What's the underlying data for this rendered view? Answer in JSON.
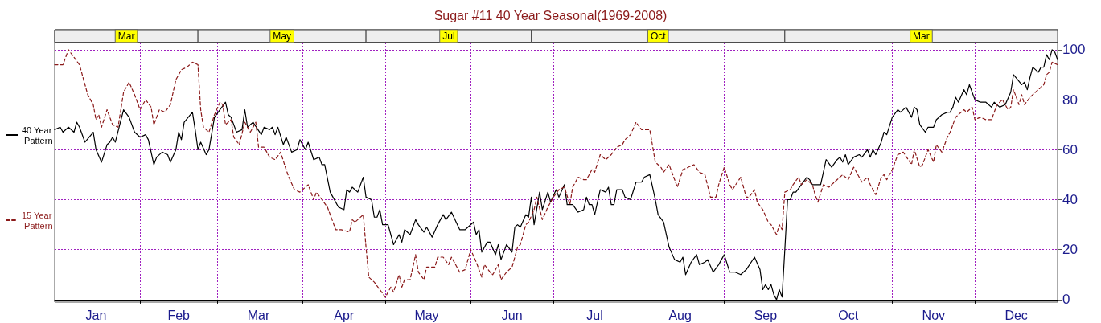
{
  "chart_data": {
    "type": "line",
    "title": "Sugar #11 40 Year Seasonal(1969-2008)",
    "series": [
      {
        "name": "40 Year Pattern",
        "color": "#000000",
        "line_style": "solid",
        "x": [
          "--01-01",
          "--01-03",
          "--01-04",
          "--01-06",
          "--01-08",
          "--01-09",
          "--01-10",
          "--01-12",
          "--01-15",
          "--01-16",
          "--01-18",
          "--01-20",
          "--01-21",
          "--01-22",
          "--01-23",
          "--01-26",
          "--01-28",
          "--01-30",
          "--02-01",
          "--02-03",
          "--02-04",
          "--02-06",
          "--02-07",
          "--02-09",
          "--02-11",
          "--02-12",
          "--02-14",
          "--02-15",
          "--02-16",
          "--02-17",
          "--02-20",
          "--02-21",
          "--02-22",
          "--02-23",
          "--02-25",
          "--02-26",
          "--02-28",
          "--03-04",
          "--03-05",
          "--03-06",
          "--03-08",
          "--03-10",
          "--03-11",
          "--03-12",
          "--03-14",
          "--03-17",
          "--03-18",
          "--03-20",
          "--03-21",
          "--03-22",
          "--03-23",
          "--03-25",
          "--03-26",
          "--03-28",
          "--03-30",
          "--03-31",
          "--04-02",
          "--04-03",
          "--04-05",
          "--04-07",
          "--04-08",
          "--04-09",
          "--04-11",
          "--04-14",
          "--04-16",
          "--04-17",
          "--04-18",
          "--04-19",
          "--04-21",
          "--04-23",
          "--04-24",
          "--04-26",
          "--04-27",
          "--04-28",
          "--04-29",
          "--04-30",
          "--05-02",
          "--05-04",
          "--05-06",
          "--05-07",
          "--05-08",
          "--05-10",
          "--05-12",
          "--05-13",
          "--05-15",
          "--05-16",
          "--05-18",
          "--05-20",
          "--05-22",
          "--05-23",
          "--05-25",
          "--05-28",
          "--05-30",
          "--06-02",
          "--06-03",
          "--06-04",
          "--06-05",
          "--06-07",
          "--06-08",
          "--06-10",
          "--06-11",
          "--06-12",
          "--06-14",
          "--06-16",
          "--06-17",
          "--06-18",
          "--06-19",
          "--06-21",
          "--06-22",
          "--06-23",
          "--06-24",
          "--06-26",
          "--06-27",
          "--06-29",
          "--06-30",
          "--07-02",
          "--07-03",
          "--07-05",
          "--07-06",
          "--07-08",
          "--07-10",
          "--07-12",
          "--07-13",
          "--07-14",
          "--07-15",
          "--07-16",
          "--07-18",
          "--07-20",
          "--07-21",
          "--07-22",
          "--07-23",
          "--07-24",
          "--07-26",
          "--07-27",
          "--07-29",
          "--07-31",
          "--08-02",
          "--08-03",
          "--08-05",
          "--08-07",
          "--08-08",
          "--08-10",
          "--08-12",
          "--08-14",
          "--08-16",
          "--08-17",
          "--08-18",
          "--08-20",
          "--08-22",
          "--08-23",
          "--08-25",
          "--08-26",
          "--08-28",
          "--08-30",
          "--09-01",
          "--09-03",
          "--09-05",
          "--09-07",
          "--09-09",
          "--09-12",
          "--09-14",
          "--09-15",
          "--09-16",
          "--09-17",
          "--09-18",
          "--09-19",
          "--09-20",
          "--09-21",
          "--09-22",
          "--09-23",
          "--09-24",
          "--09-25",
          "--09-26",
          "--09-27",
          "--09-29",
          "--10-01",
          "--10-02",
          "--10-03",
          "--10-06",
          "--10-08",
          "--10-10",
          "--10-12",
          "--10-13",
          "--10-14",
          "--10-15",
          "--10-16",
          "--10-18",
          "--10-20",
          "--10-21",
          "--10-23",
          "--10-24",
          "--10-25",
          "--10-26",
          "--10-28",
          "--10-29",
          "--10-30",
          "--11-01",
          "--11-03",
          "--11-04",
          "--11-06",
          "--11-08",
          "--11-09",
          "--11-10",
          "--11-11",
          "--11-13",
          "--11-14",
          "--11-16",
          "--11-17",
          "--11-19",
          "--11-21",
          "--11-22",
          "--11-23",
          "--11-24",
          "--11-25",
          "--11-27",
          "--11-28",
          "--11-29",
          "--12-01",
          "--12-03",
          "--12-05",
          "--12-07",
          "--12-08",
          "--12-10",
          "--12-12",
          "--12-14",
          "--12-15",
          "--12-18",
          "--12-19",
          "--12-20",
          "--12-21",
          "--12-22",
          "--12-24",
          "--12-25",
          "--12-26",
          "--12-27",
          "--12-28",
          "--12-29",
          "--12-30",
          "--12-31"
        ],
        "values": [
          68,
          69,
          67,
          69,
          67,
          71,
          69,
          63,
          67,
          60,
          55,
          62,
          63,
          65,
          63,
          76,
          73,
          67,
          65,
          66,
          64,
          54,
          57,
          59,
          58,
          55,
          60,
          67,
          64,
          71,
          75,
          68,
          60,
          63,
          58,
          60,
          73,
          79,
          74,
          73,
          67,
          68,
          76,
          69,
          71,
          66,
          69,
          68,
          69,
          66,
          69,
          62,
          65,
          59,
          60,
          64,
          60,
          63,
          56,
          57,
          54,
          54,
          43,
          37,
          36,
          44,
          43,
          45,
          43,
          49,
          41,
          40,
          33,
          33,
          36,
          30,
          30,
          22,
          26,
          23,
          28,
          26,
          32,
          30,
          27,
          29,
          25,
          30,
          34,
          32,
          35,
          28,
          28,
          31,
          26,
          28,
          19,
          23,
          23,
          18,
          22,
          16,
          22,
          19,
          29,
          30,
          29,
          34,
          33,
          41,
          30,
          43,
          36,
          43,
          39,
          44,
          41,
          46,
          38,
          38,
          35,
          36,
          41,
          38,
          38,
          34,
          44,
          43,
          45,
          38,
          38,
          44,
          44,
          41,
          40,
          47,
          47,
          49,
          50,
          40,
          34,
          31,
          21,
          16,
          15,
          17,
          10,
          15,
          18,
          14,
          15,
          16,
          11,
          14,
          18,
          11,
          11,
          10,
          12,
          17,
          12,
          4,
          6,
          4,
          6,
          2,
          0,
          4,
          1,
          20,
          40,
          40,
          43,
          43,
          46,
          49,
          48,
          46,
          46,
          56,
          53,
          56,
          57,
          55,
          58,
          54,
          57,
          58,
          57,
          60,
          57,
          60,
          58,
          63,
          67,
          66,
          73,
          76,
          75,
          77,
          73,
          77,
          76,
          70,
          67,
          69,
          69,
          72,
          74,
          75,
          75,
          77,
          81,
          79,
          84,
          82,
          86,
          80,
          79,
          79,
          77,
          79,
          77,
          78,
          83,
          90,
          86,
          87,
          84,
          89,
          93,
          91,
          93,
          93,
          98,
          96,
          100,
          99,
          96
        ]
      },
      {
        "name": "15 Year Pattern",
        "color": "#8b1a1a",
        "line_style": "dashed",
        "x": [
          "--01-01",
          "--01-04",
          "--01-06",
          "--01-08",
          "--01-10",
          "--01-13",
          "--01-15",
          "--01-16",
          "--01-17",
          "--01-18",
          "--01-20",
          "--01-22",
          "--01-24",
          "--01-26",
          "--01-28",
          "--01-30",
          "--02-01",
          "--02-03",
          "--02-05",
          "--02-06",
          "--02-08",
          "--02-10",
          "--02-12",
          "--02-14",
          "--02-16",
          "--02-18",
          "--02-20",
          "--02-22",
          "--02-23",
          "--02-24",
          "--02-26",
          "--02-28",
          "--03-02",
          "--03-03",
          "--03-04",
          "--03-06",
          "--03-07",
          "--03-09",
          "--03-11",
          "--03-13",
          "--03-15",
          "--03-16",
          "--03-18",
          "--03-20",
          "--03-22",
          "--03-24",
          "--03-26",
          "--03-27",
          "--03-29",
          "--03-31",
          "--04-03",
          "--04-05",
          "--04-06",
          "--04-08",
          "--04-10",
          "--04-13",
          "--04-15",
          "--04-18",
          "--04-19",
          "--04-20",
          "--04-23",
          "--04-24",
          "--04-25",
          "--04-27",
          "--04-29",
          "--05-01",
          "--05-03",
          "--05-04",
          "--05-06",
          "--05-07",
          "--05-08",
          "--05-10",
          "--05-12",
          "--05-13",
          "--05-15",
          "--05-16",
          "--05-19",
          "--05-20",
          "--05-22",
          "--05-24",
          "--05-25",
          "--05-28",
          "--05-30",
          "--06-01",
          "--06-03",
          "--06-05",
          "--06-06",
          "--06-08",
          "--06-09",
          "--06-11",
          "--06-12",
          "--06-14",
          "--06-16",
          "--06-18",
          "--06-19",
          "--06-21",
          "--06-22",
          "--06-24",
          "--06-25",
          "--06-27",
          "--06-29",
          "--07-01",
          "--07-03",
          "--07-05",
          "--07-07",
          "--07-08",
          "--07-10",
          "--07-12",
          "--07-13",
          "--07-15",
          "--07-16",
          "--07-18",
          "--07-20",
          "--07-22",
          "--07-24",
          "--07-26",
          "--07-27",
          "--07-29",
          "--07-31",
          "--08-02",
          "--08-04",
          "--08-05",
          "--08-07",
          "--08-09",
          "--08-10",
          "--08-12",
          "--08-13",
          "--08-15",
          "--08-17",
          "--08-19",
          "--08-21",
          "--08-23",
          "--08-25",
          "--08-27",
          "--08-29",
          "--08-30",
          "--09-01",
          "--09-03",
          "--09-04",
          "--09-07",
          "--09-09",
          "--09-10",
          "--09-12",
          "--09-13",
          "--09-15",
          "--09-17",
          "--09-18",
          "--09-20",
          "--09-21",
          "--09-22",
          "--09-23",
          "--09-25",
          "--09-26",
          "--09-28",
          "--09-29",
          "--10-01",
          "--10-03",
          "--10-04",
          "--10-05",
          "--10-07",
          "--10-09",
          "--10-11",
          "--10-13",
          "--10-14",
          "--10-16",
          "--10-18",
          "--10-19",
          "--10-21",
          "--10-23",
          "--10-24",
          "--10-26",
          "--10-28",
          "--10-29",
          "--10-30",
          "--11-01",
          "--11-03",
          "--11-05",
          "--11-08",
          "--11-09",
          "--11-11",
          "--11-12",
          "--11-14",
          "--11-16",
          "--11-17",
          "--11-19",
          "--11-21",
          "--11-22",
          "--11-24",
          "--11-25",
          "--11-27",
          "--11-28",
          "--11-30",
          "--12-01",
          "--12-03",
          "--12-05",
          "--12-07",
          "--12-09",
          "--12-11",
          "--12-13",
          "--12-14",
          "--12-15",
          "--12-17",
          "--12-18",
          "--12-19",
          "--12-21",
          "--12-23",
          "--12-26",
          "--12-27",
          "--12-28",
          "--12-29",
          "--12-31"
        ],
        "values": [
          94,
          94,
          100,
          97,
          94,
          82,
          78,
          72,
          74,
          69,
          76,
          70,
          69,
          83,
          87,
          82,
          76,
          80,
          77,
          70,
          76,
          75,
          78,
          88,
          92,
          93,
          95,
          94,
          76,
          69,
          67,
          74,
          79,
          78,
          70,
          72,
          65,
          62,
          71,
          67,
          71,
          61,
          61,
          57,
          56,
          59,
          52,
          49,
          44,
          43,
          46,
          40,
          43,
          40,
          37,
          28,
          28,
          27,
          32,
          31,
          34,
          21,
          9,
          7,
          4,
          1,
          5,
          3,
          10,
          5,
          8,
          8,
          18,
          11,
          8,
          13,
          13,
          17,
          17,
          14,
          17,
          11,
          12,
          20,
          15,
          9,
          14,
          11,
          10,
          14,
          8,
          11,
          13,
          21,
          22,
          30,
          31,
          36,
          41,
          32,
          37,
          41,
          44,
          45,
          38,
          45,
          49,
          48,
          48,
          52,
          51,
          58,
          56,
          58,
          61,
          62,
          64,
          66,
          71,
          68,
          68,
          68,
          55,
          53,
          51,
          54,
          51,
          45,
          52,
          53,
          54,
          51,
          50,
          41,
          41,
          46,
          53,
          46,
          44,
          49,
          41,
          41,
          44,
          39,
          36,
          31,
          30,
          26,
          30,
          28,
          43,
          44,
          46,
          49,
          46,
          48,
          46,
          42,
          39,
          46,
          45,
          47,
          49,
          50,
          48,
          53,
          51,
          47,
          49,
          46,
          42,
          49,
          50,
          48,
          52,
          58,
          59,
          54,
          60,
          53,
          54,
          60,
          55,
          62,
          59,
          65,
          67,
          73,
          74,
          76,
          75,
          77,
          72,
          73,
          72,
          72,
          78,
          80,
          76,
          77,
          84,
          78,
          82,
          78,
          81,
          83,
          86,
          90,
          91,
          95,
          94
        ]
      }
    ],
    "xlim": [
      "--01-01",
      "--12-31"
    ],
    "xticks": [
      {
        "value": "--01-16",
        "label": "Jan"
      },
      {
        "value": "--02-01",
        "label": null
      },
      {
        "value": "--02-15",
        "label": "Feb"
      },
      {
        "value": "--03-01",
        "label": null
      },
      {
        "value": "--03-16",
        "label": "Mar"
      },
      {
        "value": "--04-01",
        "label": null
      },
      {
        "value": "--04-16",
        "label": "Apr"
      },
      {
        "value": "--05-01",
        "label": null
      },
      {
        "value": "--05-16",
        "label": "May"
      },
      {
        "value": "--06-01",
        "label": null
      },
      {
        "value": "--06-16",
        "label": "Jun"
      },
      {
        "value": "--07-01",
        "label": null
      },
      {
        "value": "--07-16",
        "label": "Jul"
      },
      {
        "value": "--08-01",
        "label": null
      },
      {
        "value": "--08-16",
        "label": "Aug"
      },
      {
        "value": "--09-01",
        "label": null
      },
      {
        "value": "--09-16",
        "label": "Sep"
      },
      {
        "value": "--10-01",
        "label": null
      },
      {
        "value": "--10-16",
        "label": "Oct"
      },
      {
        "value": "--11-01",
        "label": null
      },
      {
        "value": "--11-16",
        "label": "Nov"
      },
      {
        "value": "--12-01",
        "label": null
      },
      {
        "value": "--12-16",
        "label": "Dec"
      }
    ],
    "bands": [
      {
        "axis": "x",
        "from": "--01-01",
        "to": "--02-22",
        "label": "Mar"
      },
      {
        "axis": "x",
        "from": "--02-22",
        "to": "--04-24",
        "label": "May"
      },
      {
        "axis": "x",
        "from": "--04-24",
        "to": "--06-23",
        "label": "Jul"
      },
      {
        "axis": "x",
        "from": "--06-23",
        "to": "--09-23",
        "label": "Oct"
      },
      {
        "axis": "x",
        "from": "--09-23",
        "to": "--12-31",
        "label": "Mar"
      }
    ],
    "ylim": [
      -1,
      108
    ],
    "yticks": [
      0,
      20,
      40,
      60,
      80,
      100
    ],
    "grid": true,
    "legend": "left",
    "marker": "none"
  }
}
